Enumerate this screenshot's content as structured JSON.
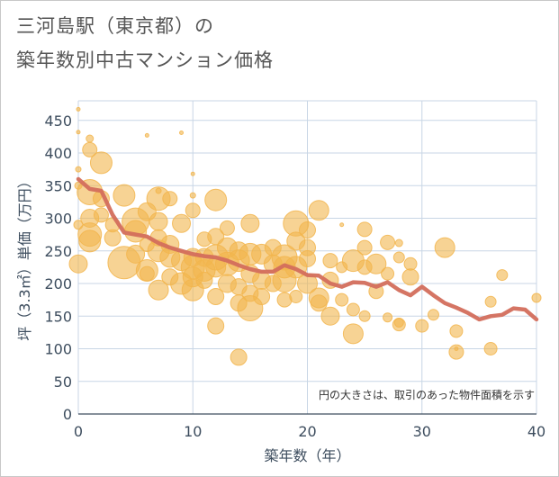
{
  "title_line1": "三河島駅（東京都）の",
  "title_line2": "築年数別中古マンション価格",
  "colors": {
    "bubble": "#f2b54d",
    "line": "#d36e5c",
    "plot_bg": "#ffffff",
    "grid": "#c8d6e5",
    "axis_text": "#3d4d5e"
  },
  "chart_data": {
    "type": "scatter",
    "xlabel": "築年数（年）",
    "ylabel": "坪（3.3㎡）単価（万円）",
    "xlim": [
      0,
      40
    ],
    "ylim": [
      0,
      480
    ],
    "xticks": [
      0,
      10,
      20,
      30,
      40
    ],
    "yticks": [
      0,
      50,
      100,
      150,
      200,
      250,
      300,
      350,
      400,
      450
    ],
    "grid": true,
    "annotation": "円の大きさは、取引のあった物件面積を示す",
    "series": [
      {
        "kind": "bubble",
        "points": [
          {
            "x": 0,
            "y": 467,
            "s": 2
          },
          {
            "x": 0,
            "y": 432,
            "s": 2
          },
          {
            "x": 0,
            "y": 375,
            "s": 3
          },
          {
            "x": 0,
            "y": 350,
            "s": 4
          },
          {
            "x": 0,
            "y": 290,
            "s": 5
          },
          {
            "x": 0,
            "y": 230,
            "s": 10
          },
          {
            "x": 1,
            "y": 422,
            "s": 4
          },
          {
            "x": 1,
            "y": 405,
            "s": 8
          },
          {
            "x": 1,
            "y": 340,
            "s": 14
          },
          {
            "x": 1,
            "y": 300,
            "s": 10
          },
          {
            "x": 1,
            "y": 275,
            "s": 13
          },
          {
            "x": 1,
            "y": 265,
            "s": 12
          },
          {
            "x": 2,
            "y": 385,
            "s": 12
          },
          {
            "x": 2,
            "y": 330,
            "s": 9
          },
          {
            "x": 2,
            "y": 305,
            "s": 8
          },
          {
            "x": 3,
            "y": 290,
            "s": 8
          },
          {
            "x": 3,
            "y": 270,
            "s": 9
          },
          {
            "x": 4,
            "y": 335,
            "s": 12
          },
          {
            "x": 4,
            "y": 232,
            "s": 18
          },
          {
            "x": 5,
            "y": 295,
            "s": 15
          },
          {
            "x": 5,
            "y": 280,
            "s": 12
          },
          {
            "x": 5,
            "y": 245,
            "s": 10
          },
          {
            "x": 6,
            "y": 427,
            "s": 2
          },
          {
            "x": 6,
            "y": 310,
            "s": 10
          },
          {
            "x": 6,
            "y": 260,
            "s": 8
          },
          {
            "x": 6,
            "y": 220,
            "s": 12
          },
          {
            "x": 6,
            "y": 215,
            "s": 8
          },
          {
            "x": 7,
            "y": 342,
            "s": 3
          },
          {
            "x": 7,
            "y": 330,
            "s": 13
          },
          {
            "x": 7,
            "y": 295,
            "s": 10
          },
          {
            "x": 7,
            "y": 270,
            "s": 9
          },
          {
            "x": 7,
            "y": 250,
            "s": 12
          },
          {
            "x": 7,
            "y": 190,
            "s": 11
          },
          {
            "x": 8,
            "y": 330,
            "s": 8
          },
          {
            "x": 8,
            "y": 260,
            "s": 10
          },
          {
            "x": 8,
            "y": 240,
            "s": 11
          },
          {
            "x": 8,
            "y": 210,
            "s": 9
          },
          {
            "x": 9,
            "y": 431,
            "s": 2
          },
          {
            "x": 9,
            "y": 292,
            "s": 10
          },
          {
            "x": 9,
            "y": 235,
            "s": 11
          },
          {
            "x": 9,
            "y": 200,
            "s": 12
          },
          {
            "x": 10,
            "y": 368,
            "s": 2
          },
          {
            "x": 10,
            "y": 335,
            "s": 3
          },
          {
            "x": 10,
            "y": 312,
            "s": 8
          },
          {
            "x": 10,
            "y": 240,
            "s": 10
          },
          {
            "x": 10,
            "y": 225,
            "s": 13
          },
          {
            "x": 10,
            "y": 210,
            "s": 11
          },
          {
            "x": 10,
            "y": 190,
            "s": 12
          },
          {
            "x": 11,
            "y": 268,
            "s": 8
          },
          {
            "x": 11,
            "y": 240,
            "s": 10
          },
          {
            "x": 11,
            "y": 220,
            "s": 12
          },
          {
            "x": 11,
            "y": 205,
            "s": 9
          },
          {
            "x": 12,
            "y": 328,
            "s": 12
          },
          {
            "x": 12,
            "y": 272,
            "s": 9
          },
          {
            "x": 12,
            "y": 240,
            "s": 14
          },
          {
            "x": 12,
            "y": 225,
            "s": 11
          },
          {
            "x": 12,
            "y": 180,
            "s": 9
          },
          {
            "x": 12,
            "y": 135,
            "s": 9
          },
          {
            "x": 13,
            "y": 285,
            "s": 8
          },
          {
            "x": 13,
            "y": 255,
            "s": 11
          },
          {
            "x": 13,
            "y": 230,
            "s": 13
          },
          {
            "x": 13,
            "y": 200,
            "s": 10
          },
          {
            "x": 14,
            "y": 250,
            "s": 10
          },
          {
            "x": 14,
            "y": 235,
            "s": 12
          },
          {
            "x": 14,
            "y": 195,
            "s": 9
          },
          {
            "x": 14,
            "y": 170,
            "s": 9
          },
          {
            "x": 14,
            "y": 87,
            "s": 9
          },
          {
            "x": 15,
            "y": 292,
            "s": 10
          },
          {
            "x": 15,
            "y": 245,
            "s": 12
          },
          {
            "x": 15,
            "y": 215,
            "s": 10
          },
          {
            "x": 15,
            "y": 185,
            "s": 9
          },
          {
            "x": 15,
            "y": 162,
            "s": 14
          },
          {
            "x": 16,
            "y": 245,
            "s": 11
          },
          {
            "x": 16,
            "y": 205,
            "s": 10
          },
          {
            "x": 16,
            "y": 180,
            "s": 9
          },
          {
            "x": 17,
            "y": 255,
            "s": 9
          },
          {
            "x": 17,
            "y": 230,
            "s": 10
          },
          {
            "x": 17,
            "y": 200,
            "s": 9
          },
          {
            "x": 18,
            "y": 240,
            "s": 14
          },
          {
            "x": 18,
            "y": 225,
            "s": 12
          },
          {
            "x": 18,
            "y": 205,
            "s": 13
          },
          {
            "x": 18,
            "y": 175,
            "s": 8
          },
          {
            "x": 19,
            "y": 292,
            "s": 14
          },
          {
            "x": 19,
            "y": 265,
            "s": 10
          },
          {
            "x": 19,
            "y": 225,
            "s": 12
          },
          {
            "x": 19,
            "y": 180,
            "s": 7
          },
          {
            "x": 20,
            "y": 282,
            "s": 9
          },
          {
            "x": 20,
            "y": 255,
            "s": 9
          },
          {
            "x": 20,
            "y": 238,
            "s": 9
          },
          {
            "x": 20,
            "y": 200,
            "s": 11
          },
          {
            "x": 21,
            "y": 312,
            "s": 11
          },
          {
            "x": 21,
            "y": 178,
            "s": 11
          },
          {
            "x": 21,
            "y": 170,
            "s": 9
          },
          {
            "x": 22,
            "y": 235,
            "s": 8
          },
          {
            "x": 22,
            "y": 205,
            "s": 9
          },
          {
            "x": 22,
            "y": 150,
            "s": 10
          },
          {
            "x": 23,
            "y": 290,
            "s": 2
          },
          {
            "x": 23,
            "y": 225,
            "s": 6
          },
          {
            "x": 23,
            "y": 175,
            "s": 7
          },
          {
            "x": 24,
            "y": 235,
            "s": 12
          },
          {
            "x": 24,
            "y": 160,
            "s": 7
          },
          {
            "x": 24,
            "y": 123,
            "s": 11
          },
          {
            "x": 25,
            "y": 283,
            "s": 8
          },
          {
            "x": 25,
            "y": 255,
            "s": 8
          },
          {
            "x": 25,
            "y": 225,
            "s": 8
          },
          {
            "x": 25,
            "y": 150,
            "s": 6
          },
          {
            "x": 26,
            "y": 230,
            "s": 11
          },
          {
            "x": 26,
            "y": 188,
            "s": 8
          },
          {
            "x": 27,
            "y": 263,
            "s": 8
          },
          {
            "x": 27,
            "y": 215,
            "s": 7
          },
          {
            "x": 27,
            "y": 148,
            "s": 5
          },
          {
            "x": 28,
            "y": 262,
            "s": 4
          },
          {
            "x": 28,
            "y": 240,
            "s": 6
          },
          {
            "x": 28,
            "y": 137,
            "s": 7
          },
          {
            "x": 28,
            "y": 140,
            "s": 5
          },
          {
            "x": 29,
            "y": 230,
            "s": 7
          },
          {
            "x": 29,
            "y": 210,
            "s": 9
          },
          {
            "x": 30,
            "y": 135,
            "s": 7
          },
          {
            "x": 31,
            "y": 152,
            "s": 6
          },
          {
            "x": 32,
            "y": 255,
            "s": 11
          },
          {
            "x": 33,
            "y": 127,
            "s": 7
          },
          {
            "x": 33,
            "y": 95,
            "s": 8
          },
          {
            "x": 33,
            "y": 100,
            "s": 2
          },
          {
            "x": 36,
            "y": 172,
            "s": 6
          },
          {
            "x": 36,
            "y": 100,
            "s": 7
          },
          {
            "x": 37,
            "y": 213,
            "s": 6
          },
          {
            "x": 40,
            "y": 178,
            "s": 5
          }
        ]
      },
      {
        "kind": "line",
        "x": [
          0,
          1,
          2,
          3,
          4,
          5,
          6,
          7,
          8,
          9,
          10,
          11,
          12,
          13,
          14,
          15,
          16,
          17,
          18,
          19,
          20,
          21,
          22,
          23,
          24,
          25,
          26,
          27,
          28,
          29,
          30,
          31,
          32,
          33,
          34,
          35,
          36,
          37,
          38,
          39,
          40
        ],
        "y": [
          360,
          345,
          342,
          305,
          278,
          275,
          272,
          262,
          255,
          250,
          245,
          242,
          240,
          235,
          228,
          222,
          218,
          218,
          228,
          222,
          213,
          212,
          200,
          195,
          202,
          201,
          195,
          202,
          190,
          182,
          195,
          182,
          170,
          163,
          155,
          145,
          150,
          152,
          162,
          160,
          145
        ]
      }
    ]
  }
}
